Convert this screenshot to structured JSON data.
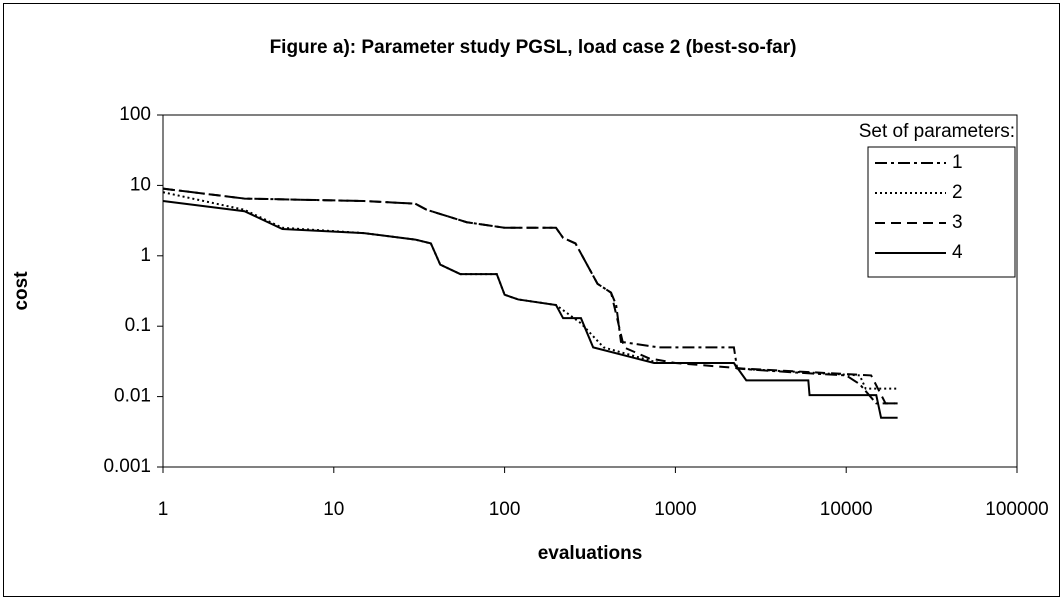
{
  "chart_data": {
    "type": "line",
    "title": "Figure a): Parameter study PGSL, load case 2 (best-so-far)",
    "x_label": "evaluations",
    "y_label": "cost",
    "xscale": "log",
    "yscale": "log",
    "xlim": [
      1,
      100000
    ],
    "xticks": [
      1,
      10,
      100,
      1000,
      10000,
      100000
    ],
    "ylim": [
      0.001,
      100
    ],
    "yticks": [
      0.001,
      0.01,
      0.1,
      1,
      10,
      100
    ],
    "grid": false,
    "legend_title": "Set of parameters:",
    "legend": "top-right",
    "series": [
      {
        "name": "1",
        "color": "#000000",
        "dash": "12 4 3 4",
        "x": [
          1,
          3,
          15,
          30,
          35,
          60,
          100,
          200,
          220,
          260,
          350,
          420,
          450,
          480,
          800,
          2200,
          2300,
          5000,
          10000,
          12000,
          15000,
          20000
        ],
        "values": [
          9,
          6.5,
          6,
          5.5,
          4.5,
          3,
          2.5,
          2.5,
          1.8,
          1.5,
          0.4,
          0.3,
          0.2,
          0.06,
          0.05,
          0.05,
          0.025,
          0.022,
          0.02,
          0.015,
          0.008,
          0.008
        ]
      },
      {
        "name": "2",
        "color": "#000000",
        "dash": "2 3",
        "x": [
          1,
          3,
          5,
          15,
          30,
          37,
          42,
          55,
          90,
          100,
          120,
          200,
          280,
          380,
          800,
          2200,
          2300,
          12000,
          13000,
          20000
        ],
        "values": [
          8,
          4.5,
          2.5,
          2.1,
          1.7,
          1.5,
          0.75,
          0.55,
          0.55,
          0.28,
          0.24,
          0.2,
          0.11,
          0.05,
          0.03,
          0.03,
          0.025,
          0.02,
          0.013,
          0.013
        ]
      },
      {
        "name": "3",
        "color": "#000000",
        "dash": "10 6",
        "x": [
          1,
          3,
          15,
          30,
          35,
          60,
          100,
          200,
          220,
          260,
          350,
          420,
          500,
          700,
          1000,
          2500,
          14000,
          17000,
          20000
        ],
        "values": [
          9,
          6.5,
          6,
          5.5,
          4.5,
          3,
          2.5,
          2.5,
          1.8,
          1.5,
          0.4,
          0.3,
          0.05,
          0.035,
          0.03,
          0.025,
          0.02,
          0.008,
          0.008
        ]
      },
      {
        "name": "4",
        "color": "#000000",
        "dash": "none",
        "x": [
          1,
          3,
          5,
          15,
          30,
          37,
          42,
          55,
          90,
          100,
          120,
          200,
          220,
          280,
          330,
          750,
          2200,
          2600,
          6000,
          6100,
          15000,
          16000,
          20000
        ],
        "values": [
          6,
          4.3,
          2.4,
          2.1,
          1.7,
          1.5,
          0.75,
          0.55,
          0.55,
          0.28,
          0.24,
          0.2,
          0.13,
          0.13,
          0.05,
          0.03,
          0.03,
          0.017,
          0.017,
          0.0105,
          0.0105,
          0.005,
          0.005
        ]
      }
    ]
  }
}
